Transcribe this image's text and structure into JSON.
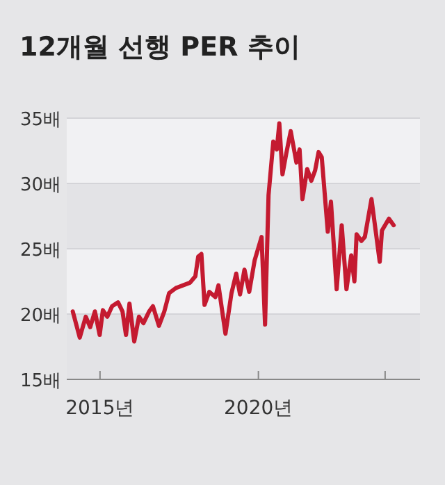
{
  "chart_data": {
    "type": "line",
    "title": "12개월 선행 PER 추이",
    "x": [
      2014.14,
      2014.36,
      2014.55,
      2014.69,
      2014.84,
      2014.99,
      2015.09,
      2015.23,
      2015.38,
      2015.57,
      2015.71,
      2015.82,
      2015.93,
      2016.08,
      2016.23,
      2016.37,
      2016.55,
      2016.67,
      2016.86,
      2017.03,
      2017.18,
      2017.4,
      2017.62,
      2017.84,
      2018.01,
      2018.1,
      2018.2,
      2018.3,
      2018.45,
      2018.64,
      2018.74,
      2018.96,
      2019.15,
      2019.3,
      2019.42,
      2019.56,
      2019.71,
      2019.88,
      2020.1,
      2020.21,
      2020.32,
      2020.47,
      2020.58,
      2020.66,
      2020.76,
      2020.88,
      2021.02,
      2021.2,
      2021.3,
      2021.39,
      2021.54,
      2021.67,
      2021.79,
      2021.9,
      2022.0,
      2022.19,
      2022.29,
      2022.47,
      2022.63,
      2022.78,
      2022.93,
      2023.03,
      2023.1,
      2023.25,
      2023.36,
      2023.57,
      2023.83,
      2023.9,
      2024.12,
      2024.27
    ],
    "series": [
      {
        "color": "#c41a30",
        "values": [
          20.2,
          18.2,
          19.8,
          19.0,
          20.2,
          18.4,
          20.3,
          19.8,
          20.6,
          20.9,
          20.2,
          18.4,
          20.8,
          17.9,
          19.8,
          19.3,
          20.2,
          20.6,
          19.1,
          20.2,
          21.6,
          22.0,
          22.2,
          22.4,
          22.9,
          24.4,
          24.6,
          20.7,
          21.7,
          21.3,
          22.2,
          18.5,
          21.6,
          23.1,
          21.5,
          23.4,
          21.7,
          24.1,
          25.9,
          19.2,
          29.1,
          33.2,
          32.6,
          34.6,
          30.7,
          32.3,
          34.0,
          31.6,
          32.6,
          28.8,
          31.1,
          30.2,
          31.0,
          32.4,
          32.0,
          26.3,
          28.6,
          21.9,
          26.8,
          21.9,
          24.5,
          22.5,
          26.1,
          25.6,
          25.9,
          28.8,
          24.0,
          26.4,
          27.3,
          26.8
        ]
      }
    ],
    "xlim": [
      2013.95,
      2025.1
    ],
    "xticks": [
      {
        "value": 2015,
        "label": "2015년"
      },
      {
        "value": 2020,
        "label": "2020년"
      },
      {
        "value": 2024,
        "label": null
      }
    ],
    "ylim": [
      15,
      35
    ],
    "yticks": [
      {
        "value": 15,
        "label": "15배"
      },
      {
        "value": 20,
        "label": "20배"
      },
      {
        "value": 25,
        "label": "25배"
      },
      {
        "value": 30,
        "label": "30배"
      },
      {
        "value": 35,
        "label": "35배"
      }
    ],
    "grid": "y",
    "marker": "none",
    "line_style": "solid"
  }
}
